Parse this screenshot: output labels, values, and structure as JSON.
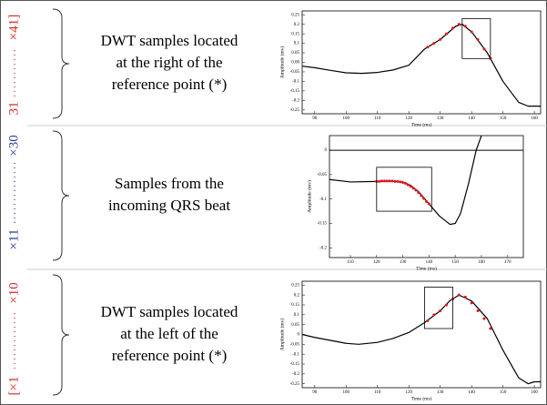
{
  "side_labels": [
    {
      "text": "[×1",
      "color": "#d62728"
    },
    {
      "text": "×10",
      "color": "#d62728"
    },
    {
      "text": "×11",
      "color": "#2b3a94"
    },
    {
      "text": "×30",
      "color": "#2b3a94"
    },
    {
      "text": "31",
      "color": "#d62728"
    },
    {
      "text": "×41]",
      "color": "#d62728"
    }
  ],
  "descriptions": [
    [
      "DWT samples located",
      "at the right of the",
      "reference point (*)"
    ],
    [
      "Samples from the",
      "incoming QRS beat"
    ],
    [
      "DWT samples located",
      "at the left of the",
      "reference point (*)"
    ]
  ],
  "chart_data": [
    {
      "type": "line",
      "xlabel": "Time (ms)",
      "ylabel": "Amplitude (mv)",
      "xlim": [
        86,
        162
      ],
      "ylim": [
        -0.27,
        0.27
      ],
      "xticks": [
        90,
        100,
        110,
        120,
        130,
        140,
        150,
        160
      ],
      "yticks": [
        0.25,
        0.2,
        0.15,
        0.1,
        0.05,
        {
          "value": 0,
          "label": "0.00"
        },
        -0.05,
        -0.1,
        -0.15,
        -0.2,
        -0.25
      ],
      "series": [
        {
          "color": "#000000",
          "x": [
            86,
            90,
            95,
            100,
            105,
            110,
            115,
            120,
            125,
            130,
            135,
            137,
            140,
            145,
            150,
            155,
            158,
            160,
            162
          ],
          "values": [
            -0.02,
            -0.028,
            -0.042,
            -0.055,
            -0.058,
            -0.053,
            -0.04,
            -0.015,
            0.07,
            0.12,
            0.19,
            0.2,
            0.16,
            0.05,
            -0.1,
            -0.21,
            -0.23,
            -0.23,
            -0.23
          ]
        },
        {
          "color": "#e0151b",
          "marker": true,
          "x": [
            126,
            128,
            130,
            132,
            134,
            136,
            138,
            140,
            142,
            144,
            146
          ],
          "values": [
            0.08,
            0.1,
            0.12,
            0.15,
            0.18,
            0.2,
            0.19,
            0.16,
            0.12,
            0.07,
            0.02
          ]
        }
      ],
      "box": {
        "x": [
          137,
          146
        ],
        "y": [
          0.02,
          0.23
        ]
      }
    },
    {
      "type": "line",
      "xlabel": "Time (ms)",
      "ylabel": "Amplitude (mv)",
      "xlim": [
        102,
        176
      ],
      "ylim": [
        -0.22,
        0.03
      ],
      "xticks": [
        110,
        120,
        130,
        140,
        150,
        160,
        170
      ],
      "yticks": [
        0,
        -0.05,
        -0.1,
        -0.15,
        -0.2
      ],
      "hline": 0,
      "series": [
        {
          "color": "#000000",
          "x": [
            102,
            110,
            120,
            125,
            130,
            133,
            136,
            140,
            144,
            148,
            150,
            152,
            155,
            158,
            160
          ],
          "values": [
            -0.06,
            -0.065,
            -0.064,
            -0.063,
            -0.065,
            -0.072,
            -0.085,
            -0.11,
            -0.135,
            -0.152,
            -0.15,
            -0.13,
            -0.07,
            0.0,
            0.03
          ]
        },
        {
          "color": "#e0151b",
          "marker": true,
          "x": [
            120,
            121,
            122,
            123,
            124,
            125,
            126,
            127,
            128,
            129,
            130,
            131,
            132,
            133,
            134,
            135,
            136,
            137,
            138,
            139,
            140
          ],
          "values": [
            -0.064,
            -0.064,
            -0.063,
            -0.063,
            -0.063,
            -0.063,
            -0.063,
            -0.064,
            -0.064,
            -0.065,
            -0.066,
            -0.068,
            -0.071,
            -0.074,
            -0.078,
            -0.082,
            -0.087,
            -0.093,
            -0.099,
            -0.105,
            -0.11
          ]
        }
      ],
      "box": {
        "x": [
          120,
          141
        ],
        "y": [
          -0.125,
          -0.035
        ]
      }
    },
    {
      "type": "line",
      "xlabel": "Time (ms)",
      "ylabel": "Amplitude (mv)",
      "xlim": [
        86,
        162
      ],
      "ylim": [
        -0.27,
        0.27
      ],
      "xticks": [
        90,
        100,
        110,
        120,
        130,
        140,
        150,
        160
      ],
      "yticks": [
        0.25,
        0.2,
        0.15,
        0.1,
        0.05,
        0,
        -0.05,
        -0.1,
        -0.15,
        -0.2,
        -0.25
      ],
      "series": [
        {
          "color": "#000000",
          "x": [
            86,
            90,
            95,
            100,
            104,
            110,
            115,
            120,
            125,
            130,
            133,
            136,
            140,
            145,
            150,
            155,
            158,
            160,
            162
          ],
          "values": [
            0.0,
            -0.015,
            -0.03,
            -0.045,
            -0.05,
            -0.04,
            -0.02,
            0.01,
            0.06,
            0.12,
            0.17,
            0.2,
            0.17,
            0.08,
            -0.08,
            -0.22,
            -0.25,
            -0.24,
            -0.24
          ]
        },
        {
          "color": "#e0151b",
          "marker": true,
          "x": [
            126,
            128,
            130,
            132,
            134,
            136,
            138,
            140,
            142,
            144,
            146
          ],
          "values": [
            0.07,
            0.1,
            0.12,
            0.15,
            0.18,
            0.2,
            0.19,
            0.16,
            0.12,
            0.08,
            0.03
          ]
        }
      ],
      "box": {
        "x": [
          125,
          134
        ],
        "y": [
          0.03,
          0.24
        ]
      }
    }
  ]
}
